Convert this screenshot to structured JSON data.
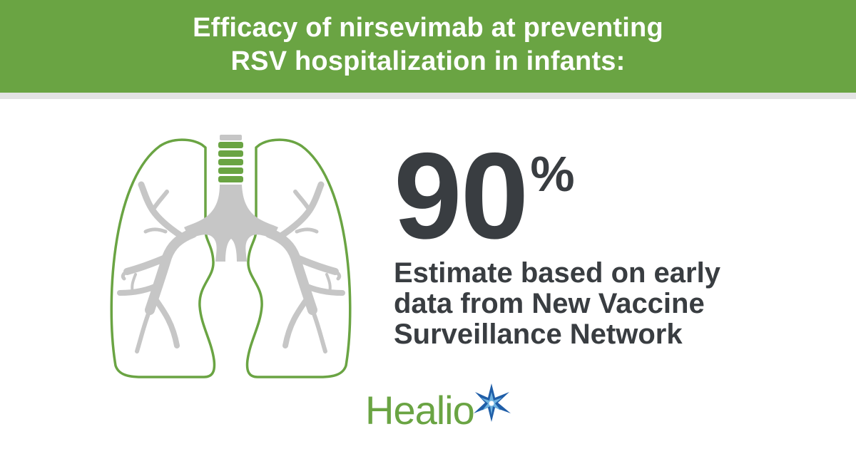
{
  "colors": {
    "brand_green": "#6aa443",
    "dark_text": "#393d41",
    "lung_gray": "#c6c6c6",
    "star_blue": "#1f5ea8"
  },
  "header": {
    "title_line1": "Efficacy of nirsevimab at preventing",
    "title_line2": "RSV hospitalization in infants:"
  },
  "illustration": {
    "icon": "lungs-icon"
  },
  "stat": {
    "value": "90",
    "unit": "%"
  },
  "caption": {
    "line1": "Estimate based on early",
    "line2": "data from New Vaccine",
    "line3": "Surveillance Network"
  },
  "logo": {
    "wordmark": "Healio",
    "icon": "star-icon"
  }
}
